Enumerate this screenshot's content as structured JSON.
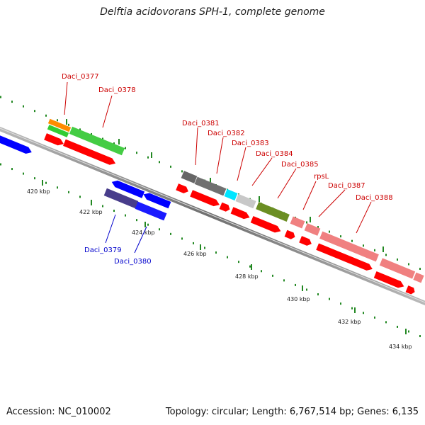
{
  "title": "Delftia acidovorans SPH-1, complete genome",
  "footer": {
    "accession": "Accession: NC_010002",
    "topology": "Topology: circular; Length: 6,767,514 bp; Genes: 6,135"
  },
  "colors": {
    "forward_cds": "#ff0000",
    "reverse_cds": "#0000ff",
    "forward_label": "#cc0000",
    "reverse_label": "#0000cc",
    "tick": "#228822",
    "backbone": "#888888"
  },
  "scale_labels": [
    "420 kbp",
    "422 kbp",
    "424 kbp",
    "426 kbp",
    "428 kbp",
    "430 kbp",
    "432 kbp",
    "434 kbp"
  ],
  "gene_labels": [
    {
      "text": "Daci_0377",
      "strand": "forward"
    },
    {
      "text": "Daci_0378",
      "strand": "forward"
    },
    {
      "text": "Daci_0381",
      "strand": "forward"
    },
    {
      "text": "Daci_0382",
      "strand": "forward"
    },
    {
      "text": "Daci_0383",
      "strand": "forward"
    },
    {
      "text": "Daci_0384",
      "strand": "forward"
    },
    {
      "text": "Daci_0385",
      "strand": "forward"
    },
    {
      "text": "rpsL",
      "strand": "forward"
    },
    {
      "text": "Daci_0387",
      "strand": "forward"
    },
    {
      "text": "Daci_0388",
      "strand": "forward"
    },
    {
      "text": "Daci_0379",
      "strand": "reverse"
    },
    {
      "text": "Daci_0380",
      "strand": "reverse"
    }
  ]
}
